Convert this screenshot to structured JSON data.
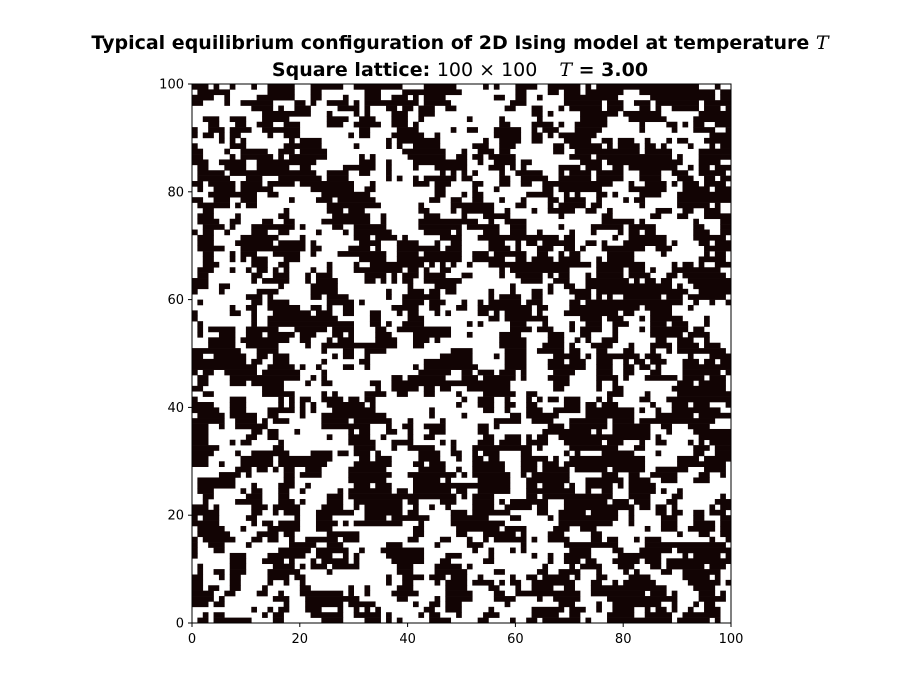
{
  "chart_data": {
    "type": "heatmap",
    "title": {
      "line1_text": "Typical equilibrium configuration of 2D Ising model at temperature ",
      "line1_var": "T",
      "line2_prefix": "Square lattice: ",
      "line2_size": "100 × 100",
      "line2_var": "T",
      "line2_value": " = 3.00"
    },
    "lattice_size": 100,
    "temperature": 3.0,
    "xlim": [
      0,
      100
    ],
    "ylim": [
      0,
      100
    ],
    "xticks": [
      "0",
      "20",
      "40",
      "60",
      "80",
      "100"
    ],
    "yticks": [
      "0",
      "20",
      "40",
      "60",
      "80",
      "100"
    ],
    "xlabel": "",
    "ylabel": "",
    "colors": {
      "spin_up": "#ffffff",
      "spin_down": "#120404"
    },
    "grid": false,
    "legend": "none"
  }
}
